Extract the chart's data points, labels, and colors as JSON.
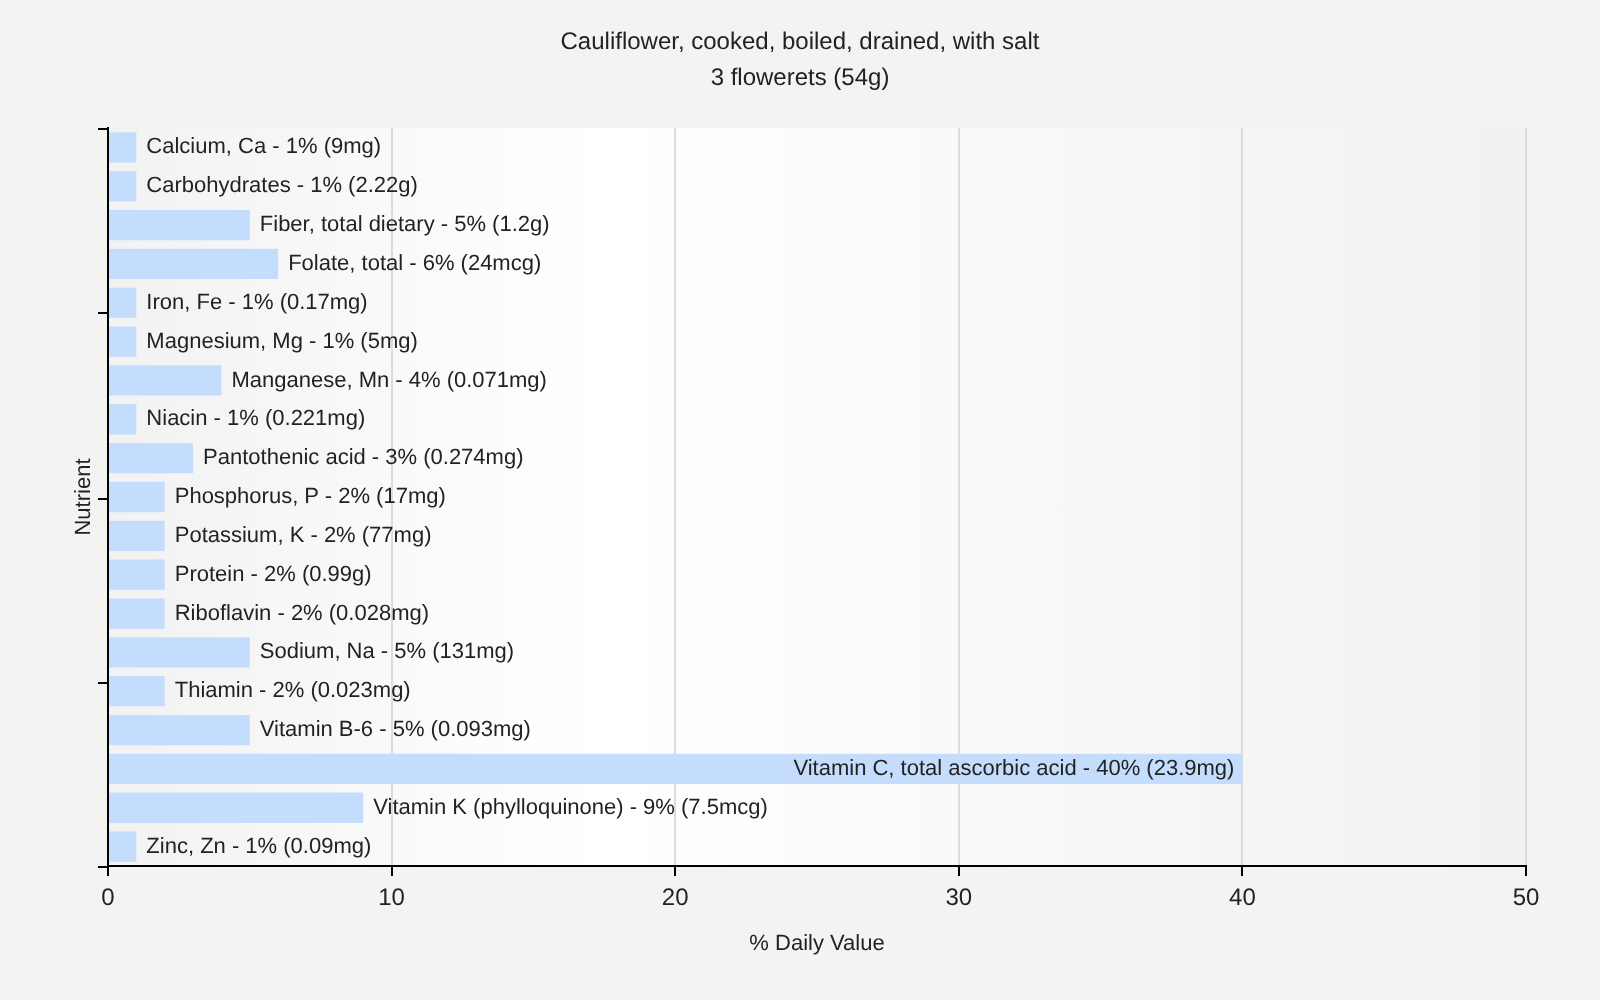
{
  "chart_data": {
    "type": "bar",
    "orientation": "horizontal",
    "title": "Cauliflower, cooked, boiled, drained, with salt",
    "subtitle": "3 flowerets (54g)",
    "xlabel": "% Daily Value",
    "ylabel": "Nutrient",
    "categories": [
      "Calcium, Ca - 1% (9mg)",
      "Carbohydrates - 1% (2.22g)",
      "Fiber, total dietary - 5% (1.2g)",
      "Folate, total - 6% (24mcg)",
      "Iron, Fe - 1% (0.17mg)",
      "Magnesium, Mg - 1% (5mg)",
      "Manganese, Mn - 4% (0.071mg)",
      "Niacin - 1% (0.221mg)",
      "Pantothenic acid - 3% (0.274mg)",
      "Phosphorus, P - 2% (17mg)",
      "Potassium, K - 2% (77mg)",
      "Protein - 2% (0.99g)",
      "Riboflavin - 2% (0.028mg)",
      "Sodium, Na - 5% (131mg)",
      "Thiamin - 2% (0.023mg)",
      "Vitamin B-6 - 5% (0.093mg)",
      "Vitamin C, total ascorbic acid - 40% (23.9mg)",
      "Vitamin K (phylloquinone) - 9% (7.5mcg)",
      "Zinc, Zn - 1% (0.09mg)"
    ],
    "values": [
      1,
      1,
      5,
      6,
      1,
      1,
      4,
      1,
      3,
      2,
      2,
      2,
      2,
      5,
      2,
      5,
      40,
      9,
      1
    ],
    "color": "#c5ddfc",
    "xlim": [
      0,
      50
    ],
    "xticks": [
      0,
      10,
      20,
      30,
      40,
      50
    ],
    "grid": "x",
    "tick_labels": "x"
  }
}
